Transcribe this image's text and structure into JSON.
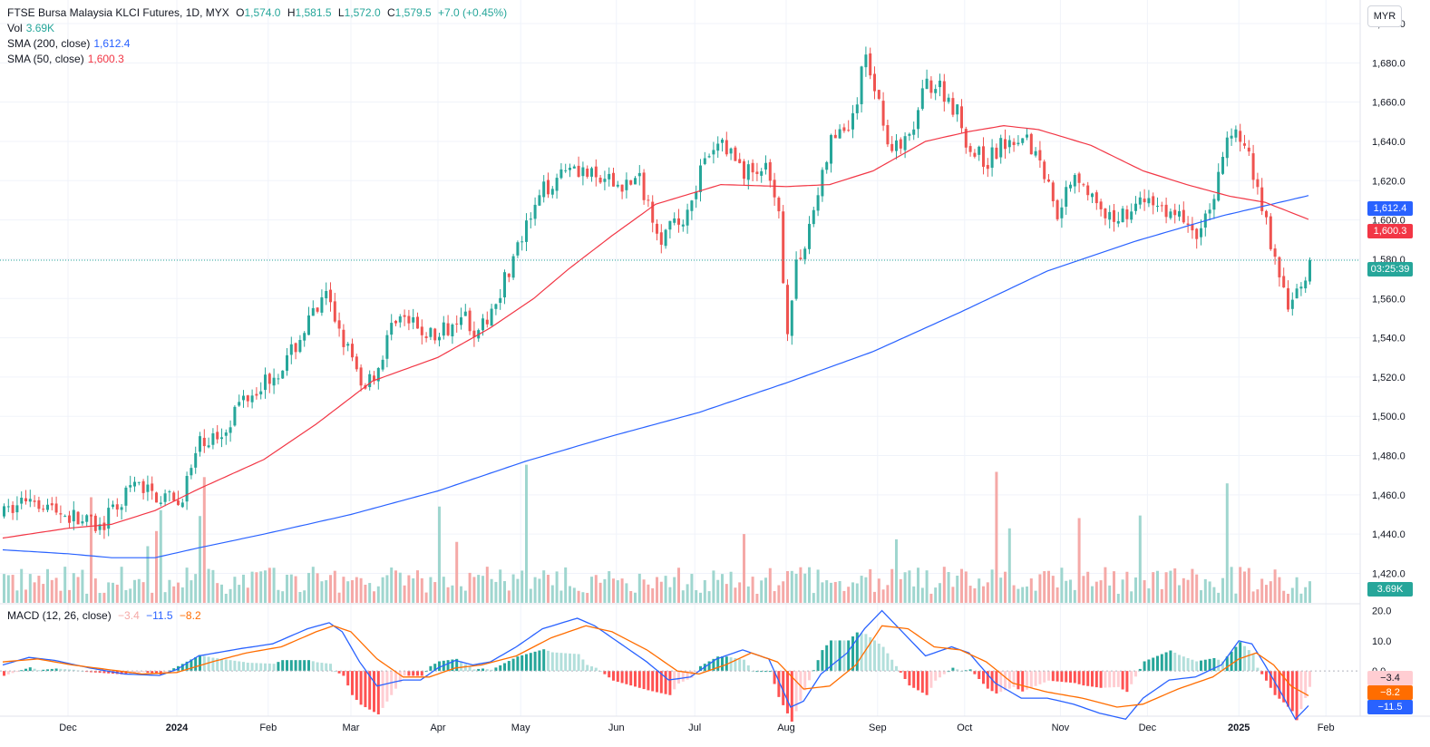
{
  "legend": {
    "title": "FTSE Bursa Malaysia KLCI Futures, 1D, MYX",
    "open_label": "O",
    "open": "1,574.0",
    "high_label": "H",
    "high": "1,581.5",
    "low_label": "L",
    "low": "1,572.0",
    "close_label": "C",
    "close": "1,579.5",
    "change": "+7.0 (+0.45%)",
    "vol_label": "Vol",
    "vol_value": "3.69K",
    "sma200_label": "SMA (200, close)",
    "sma200_value": "1,612.4",
    "sma50_label": "SMA (50, close)",
    "sma50_value": "1,600.3",
    "macd_label": "MACD (12, 26, close)",
    "macd_hist": "−3.4",
    "macd_line": "−11.5",
    "macd_signal": "−8.2"
  },
  "currency": "MYR",
  "badges": {
    "sma200": "1,612.4",
    "sma50": "1,600.3",
    "countdown": "03:25:39",
    "volume": "3.69K",
    "macd_hist": "−3.4",
    "macd_signal": "−8.2",
    "macd_line": "−11.5"
  },
  "colors": {
    "up": "#26a69a",
    "down": "#ef5350",
    "vol_up": "#9fd6cf",
    "vol_down": "#f5a9a7",
    "sma200": "#2962ff",
    "sma50": "#f23645",
    "macd": "#2962ff",
    "signal": "#ff6d00",
    "hist_up_strong": "#26a69a",
    "hist_up_weak": "#b2dfdb",
    "hist_down_strong": "#ff5252",
    "hist_down_weak": "#ffcdd2",
    "axis_text": "#131722",
    "grid": "#f0f3fa"
  },
  "chart_data": {
    "type": "candlestick",
    "price_axis": {
      "min": 1405,
      "max": 1712,
      "ticks": [
        "1,420.0",
        "1,440.0",
        "1,460.0",
        "1,480.0",
        "1,500.0",
        "1,520.0",
        "1,540.0",
        "1,560.0",
        "1,580.0",
        "1,600.0",
        "1,620.0",
        "1,640.0",
        "1,660.0",
        "1,680.0",
        "1,700.0"
      ],
      "tick_values": [
        1420,
        1440,
        1460,
        1480,
        1500,
        1520,
        1540,
        1560,
        1580,
        1600,
        1620,
        1640,
        1660,
        1680,
        1700
      ]
    },
    "macd_axis": {
      "min": -15,
      "max": 22,
      "ticks": [
        "20.0",
        "10.0",
        "0.0"
      ],
      "tick_values": [
        20,
        10,
        0
      ]
    },
    "time_axis": {
      "labels": [
        "Dec",
        "2024",
        "Feb",
        "Mar",
        "Apr",
        "May",
        "Jun",
        "Jul",
        "Aug",
        "Sep",
        "Oct",
        "Nov",
        "Dec",
        "2025",
        "Feb"
      ],
      "bar_index": [
        15,
        40,
        61,
        80,
        100,
        119,
        141,
        159,
        180,
        201,
        221,
        243,
        263,
        284,
        304
      ],
      "total_bars": 310
    },
    "last_price": 1579.5,
    "key_points": [
      [
        0,
        1450
      ],
      [
        6,
        1460
      ],
      [
        12,
        1452
      ],
      [
        22,
        1443
      ],
      [
        30,
        1465
      ],
      [
        40,
        1455
      ],
      [
        45,
        1485
      ],
      [
        50,
        1492
      ],
      [
        55,
        1510
      ],
      [
        61,
        1520
      ],
      [
        65,
        1528
      ],
      [
        70,
        1548
      ],
      [
        74,
        1560
      ],
      [
        78,
        1540
      ],
      [
        82,
        1515
      ],
      [
        86,
        1525
      ],
      [
        90,
        1552
      ],
      [
        95,
        1544
      ],
      [
        100,
        1540
      ],
      [
        105,
        1555
      ],
      [
        109,
        1540
      ],
      [
        114,
        1565
      ],
      [
        119,
        1590
      ],
      [
        124,
        1615
      ],
      [
        130,
        1630
      ],
      [
        136,
        1620
      ],
      [
        141,
        1618
      ],
      [
        146,
        1620
      ],
      [
        151,
        1592
      ],
      [
        156,
        1600
      ],
      [
        160,
        1625
      ],
      [
        165,
        1640
      ],
      [
        170,
        1625
      ],
      [
        175,
        1625
      ],
      [
        178,
        1600
      ],
      [
        180,
        1545
      ],
      [
        182,
        1575
      ],
      [
        186,
        1605
      ],
      [
        190,
        1640
      ],
      [
        195,
        1650
      ],
      [
        198,
        1685
      ],
      [
        201,
        1660
      ],
      [
        204,
        1635
      ],
      [
        208,
        1640
      ],
      [
        212,
        1670
      ],
      [
        215,
        1668
      ],
      [
        219,
        1655
      ],
      [
        222,
        1635
      ],
      [
        226,
        1630
      ],
      [
        230,
        1640
      ],
      [
        234,
        1645
      ],
      [
        238,
        1630
      ],
      [
        242,
        1605
      ],
      [
        246,
        1625
      ],
      [
        249,
        1615
      ],
      [
        253,
        1598
      ],
      [
        258,
        1605
      ],
      [
        263,
        1610
      ],
      [
        267,
        1605
      ],
      [
        271,
        1600
      ],
      [
        275,
        1592
      ],
      [
        278,
        1615
      ],
      [
        281,
        1640
      ],
      [
        283,
        1645
      ],
      [
        286,
        1632
      ],
      [
        290,
        1600
      ],
      [
        293,
        1568
      ],
      [
        296,
        1555
      ],
      [
        298,
        1566
      ],
      [
        300,
        1576
      ]
    ],
    "sma200_points": [
      [
        0,
        1432
      ],
      [
        15,
        1430
      ],
      [
        25,
        1428
      ],
      [
        35,
        1428
      ],
      [
        45,
        1433
      ],
      [
        60,
        1440
      ],
      [
        80,
        1450
      ],
      [
        100,
        1462
      ],
      [
        120,
        1477
      ],
      [
        140,
        1490
      ],
      [
        160,
        1502
      ],
      [
        180,
        1517
      ],
      [
        200,
        1533
      ],
      [
        220,
        1553
      ],
      [
        240,
        1574
      ],
      [
        260,
        1589
      ],
      [
        280,
        1602
      ],
      [
        300,
        1612.4
      ]
    ],
    "sma50_points": [
      [
        0,
        1438
      ],
      [
        15,
        1443
      ],
      [
        25,
        1445
      ],
      [
        35,
        1452
      ],
      [
        45,
        1463
      ],
      [
        60,
        1478
      ],
      [
        72,
        1496
      ],
      [
        85,
        1518
      ],
      [
        100,
        1530
      ],
      [
        112,
        1545
      ],
      [
        122,
        1560
      ],
      [
        130,
        1575
      ],
      [
        140,
        1592
      ],
      [
        150,
        1608
      ],
      [
        165,
        1618
      ],
      [
        180,
        1617
      ],
      [
        190,
        1618
      ],
      [
        200,
        1625
      ],
      [
        212,
        1640
      ],
      [
        222,
        1645
      ],
      [
        230,
        1648
      ],
      [
        238,
        1646
      ],
      [
        250,
        1638
      ],
      [
        262,
        1625
      ],
      [
        272,
        1618
      ],
      [
        282,
        1612
      ],
      [
        290,
        1609
      ],
      [
        300,
        1600.3
      ]
    ],
    "macd_points": [
      [
        0,
        2
      ],
      [
        6,
        4.5
      ],
      [
        12,
        3.5
      ],
      [
        20,
        1
      ],
      [
        28,
        -1
      ],
      [
        36,
        -1.5
      ],
      [
        40,
        0.5
      ],
      [
        45,
        5
      ],
      [
        55,
        7.5
      ],
      [
        62,
        9
      ],
      [
        70,
        14
      ],
      [
        75,
        16
      ],
      [
        78,
        13
      ],
      [
        82,
        3
      ],
      [
        86,
        -5
      ],
      [
        92,
        -3
      ],
      [
        96,
        -3
      ],
      [
        100,
        1
      ],
      [
        104,
        3.5
      ],
      [
        108,
        2
      ],
      [
        112,
        3
      ],
      [
        118,
        8
      ],
      [
        124,
        14
      ],
      [
        132,
        17.5
      ],
      [
        136,
        15
      ],
      [
        142,
        9
      ],
      [
        148,
        3
      ],
      [
        153,
        -3
      ],
      [
        158,
        -2
      ],
      [
        164,
        4
      ],
      [
        170,
        7
      ],
      [
        176,
        4
      ],
      [
        181,
        -12
      ],
      [
        184,
        -10
      ],
      [
        188,
        -1
      ],
      [
        194,
        6
      ],
      [
        198,
        14
      ],
      [
        202,
        20
      ],
      [
        206,
        14
      ],
      [
        212,
        5
      ],
      [
        218,
        8
      ],
      [
        222,
        6
      ],
      [
        228,
        -4
      ],
      [
        234,
        -9
      ],
      [
        240,
        -9
      ],
      [
        246,
        -11
      ],
      [
        252,
        -14
      ],
      [
        258,
        -16
      ],
      [
        262,
        -9
      ],
      [
        268,
        -3
      ],
      [
        274,
        -2
      ],
      [
        280,
        2
      ],
      [
        284,
        10
      ],
      [
        287,
        9
      ],
      [
        290,
        2
      ],
      [
        294,
        -8
      ],
      [
        297,
        -16
      ],
      [
        300,
        -11.5
      ]
    ],
    "signal_points": [
      [
        0,
        3
      ],
      [
        8,
        4
      ],
      [
        16,
        2
      ],
      [
        24,
        0.5
      ],
      [
        32,
        -1
      ],
      [
        40,
        -0.5
      ],
      [
        48,
        3
      ],
      [
        56,
        6
      ],
      [
        64,
        8
      ],
      [
        72,
        13
      ],
      [
        76,
        15
      ],
      [
        80,
        13
      ],
      [
        86,
        4
      ],
      [
        92,
        -2
      ],
      [
        98,
        -2
      ],
      [
        104,
        1
      ],
      [
        110,
        2
      ],
      [
        118,
        5
      ],
      [
        126,
        11
      ],
      [
        134,
        15
      ],
      [
        140,
        13
      ],
      [
        148,
        7
      ],
      [
        155,
        0
      ],
      [
        160,
        -1
      ],
      [
        166,
        2
      ],
      [
        172,
        6
      ],
      [
        178,
        3
      ],
      [
        184,
        -6
      ],
      [
        190,
        -5
      ],
      [
        196,
        2
      ],
      [
        202,
        15
      ],
      [
        208,
        14
      ],
      [
        214,
        8
      ],
      [
        220,
        7
      ],
      [
        226,
        3
      ],
      [
        232,
        -4
      ],
      [
        240,
        -7
      ],
      [
        248,
        -9
      ],
      [
        256,
        -12
      ],
      [
        262,
        -11
      ],
      [
        270,
        -6
      ],
      [
        278,
        -2
      ],
      [
        284,
        4
      ],
      [
        288,
        6
      ],
      [
        292,
        2
      ],
      [
        296,
        -5
      ],
      [
        300,
        -8.2
      ]
    ]
  }
}
